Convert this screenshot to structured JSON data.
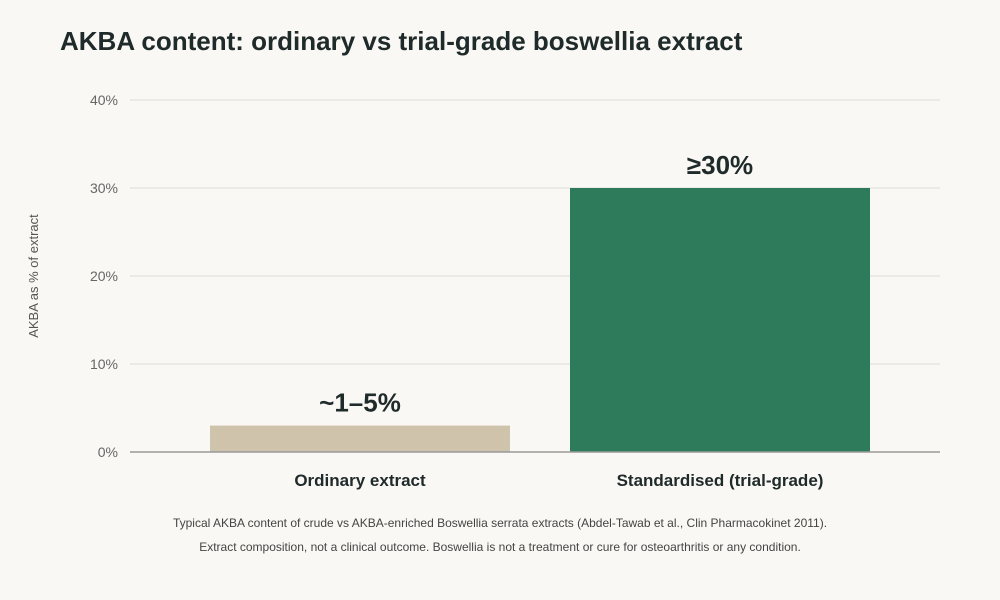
{
  "chart_data": {
    "type": "bar",
    "title": "AKBA content: ordinary vs trial-grade boswellia extract",
    "ylabel": "AKBA as % of extract",
    "xlabel": "",
    "ylim": [
      0,
      40
    ],
    "yticks": [
      0,
      10,
      20,
      30,
      40
    ],
    "ytick_labels": [
      "0%",
      "10%",
      "20%",
      "30%",
      "40%"
    ],
    "grid": true,
    "categories": [
      "Ordinary extract",
      "Standardised (trial-grade)"
    ],
    "values": [
      3,
      30
    ],
    "data_labels": [
      "~1–5%",
      "≥30%"
    ],
    "colors": [
      "#cfc3ab",
      "#2e7b5c"
    ]
  },
  "footnotes": [
    "Typical AKBA content of crude vs AKBA-enriched Boswellia serrata extracts (Abdel-Tawab et al., Clin Pharmacokinet 2011).",
    "Extract composition, not a clinical outcome. Boswellia is not a treatment or cure for osteoarthritis or any condition."
  ]
}
